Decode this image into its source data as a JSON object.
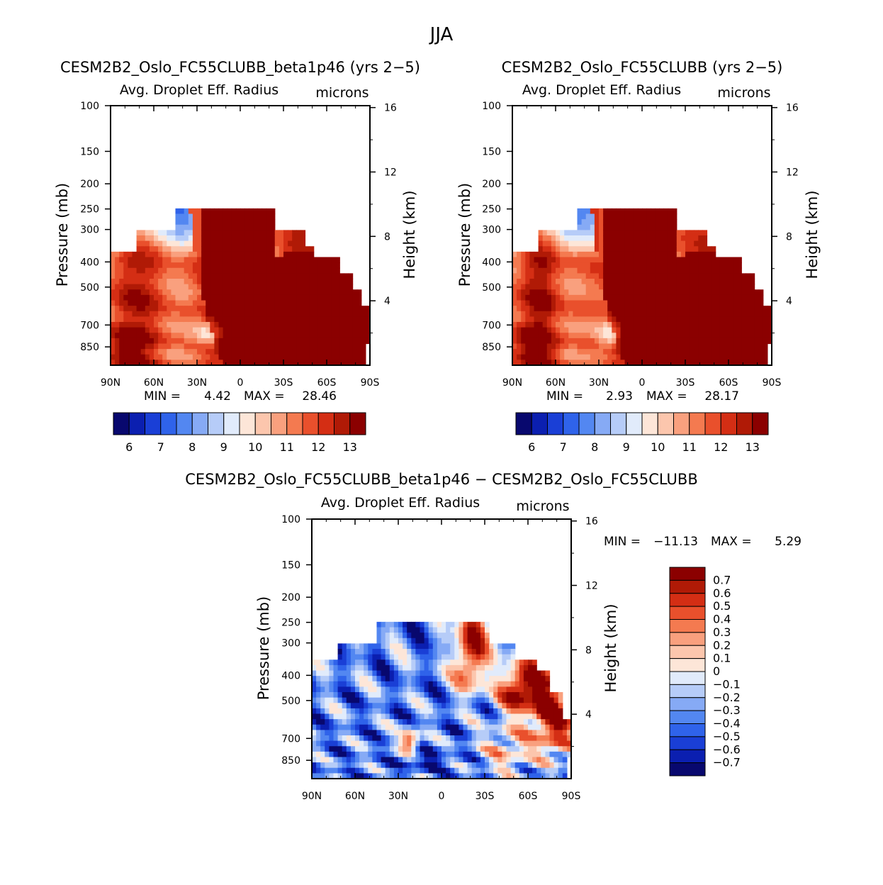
{
  "figure_title": "JJA",
  "chart_data": [
    {
      "type": "heatmap",
      "title": "CESM2B2_Oslo_FC55CLUBB_beta1p46 (yrs 2-5)",
      "variable": "Avg. Droplet Eff. Radius",
      "units": "microns",
      "ylabel": "Pressure (mb)",
      "ylabel_right": "Height (km)",
      "x_ticks": [
        "90N",
        "60N",
        "30N",
        "0",
        "30S",
        "60S",
        "90S"
      ],
      "y_ticks": [
        "100",
        "150",
        "200",
        "250",
        "300",
        "400",
        "500",
        "700",
        "850"
      ],
      "y2_ticks": [
        "16",
        "12",
        "8",
        "4"
      ],
      "xlim": [
        90,
        -90
      ],
      "ylim": [
        1000,
        100
      ],
      "min_label": "MIN =",
      "min_value": "4.42",
      "max_label": "MAX =",
      "max_value": "28.46",
      "colorbar_labels": [
        "6",
        "7",
        "8",
        "9",
        "10",
        "11",
        "12",
        "13"
      ],
      "colorbar_levels": [
        5.5,
        6,
        6.5,
        7,
        7.5,
        8,
        8.5,
        9,
        9.5,
        10,
        10.5,
        11,
        11.5,
        12,
        12.5,
        13,
        13.5
      ],
      "field_variant": "beta"
    },
    {
      "type": "heatmap",
      "title": "CESM2B2_Oslo_FC55CLUBB (yrs 2-5)",
      "variable": "Avg. Droplet Eff. Radius",
      "units": "microns",
      "ylabel": "Pressure (mb)",
      "ylabel_right": "Height (km)",
      "x_ticks": [
        "90N",
        "60N",
        "30N",
        "0",
        "30S",
        "60S",
        "90S"
      ],
      "y_ticks": [
        "100",
        "150",
        "200",
        "250",
        "300",
        "400",
        "500",
        "700",
        "850"
      ],
      "y2_ticks": [
        "16",
        "12",
        "8",
        "4"
      ],
      "xlim": [
        90,
        -90
      ],
      "ylim": [
        1000,
        100
      ],
      "min_label": "MIN =",
      "min_value": "2.93",
      "max_label": "MAX =",
      "max_value": "28.17",
      "colorbar_labels": [
        "6",
        "7",
        "8",
        "9",
        "10",
        "11",
        "12",
        "13"
      ],
      "colorbar_levels": [
        5.5,
        6,
        6.5,
        7,
        7.5,
        8,
        8.5,
        9,
        9.5,
        10,
        10.5,
        11,
        11.5,
        12,
        12.5,
        13,
        13.5
      ],
      "field_variant": "control"
    },
    {
      "type": "heatmap",
      "title": "CESM2B2_Oslo_FC55CLUBB_beta1p46 - CESM2B2_Oslo_FC55CLUBB",
      "variable": "Avg. Droplet Eff. Radius",
      "units": "microns",
      "ylabel": "Pressure (mb)",
      "ylabel_right": "Height (km)",
      "x_ticks": [
        "90N",
        "60N",
        "30N",
        "0",
        "30S",
        "60S",
        "90S"
      ],
      "y_ticks": [
        "100",
        "150",
        "200",
        "250",
        "300",
        "400",
        "500",
        "700",
        "850"
      ],
      "y2_ticks": [
        "16",
        "12",
        "8",
        "4"
      ],
      "xlim": [
        90,
        -90
      ],
      "ylim": [
        1000,
        100
      ],
      "min_label": "MIN =",
      "min_value": "-11.13",
      "max_label": "MAX =",
      "max_value": "5.29",
      "colorbar_labels": [
        "0.7",
        "0.6",
        "0.5",
        "0.4",
        "0.3",
        "0.2",
        "0.1",
        "0",
        "-0.1",
        "-0.2",
        "-0.3",
        "-0.4",
        "-0.5",
        "-0.6",
        "-0.7"
      ],
      "colorbar_levels": [
        -0.8,
        -0.7,
        -0.6,
        -0.5,
        -0.4,
        -0.3,
        -0.2,
        -0.1,
        0,
        0.1,
        0.2,
        0.3,
        0.4,
        0.5,
        0.6,
        0.7,
        0.8
      ],
      "field_variant": "difference"
    }
  ],
  "colors": {
    "ramp": [
      "#08086e",
      "#0b1fb0",
      "#1a3fd6",
      "#2f63ea",
      "#5387f1",
      "#86aaf5",
      "#b6ccf8",
      "#e1ebfb",
      "#fde6d8",
      "#fcc6ad",
      "#f9a07e",
      "#f47a50",
      "#e9502c",
      "#d42e14",
      "#b01a06",
      "#8b0000"
    ]
  }
}
